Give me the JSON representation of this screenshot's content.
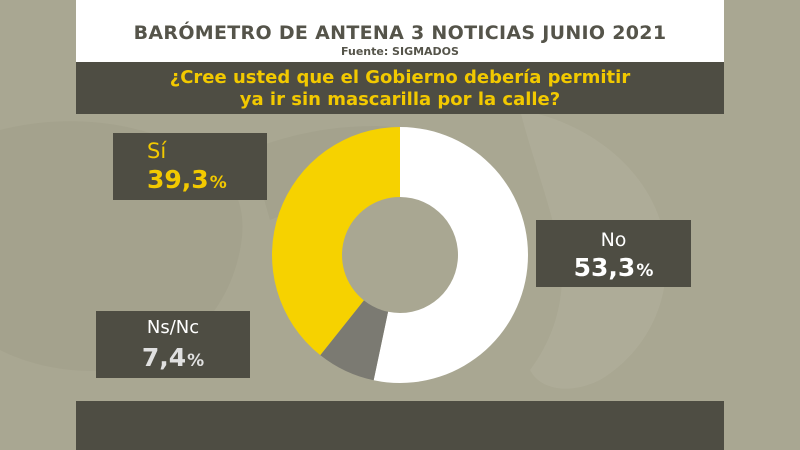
{
  "header": {
    "title": "BARÓMETRO DE ANTENA 3 NOTICIAS JUNIO 2021",
    "source": "Fuente: SIGMADOS"
  },
  "question": {
    "line1": "¿Cree usted que el Gobierno debería permitir",
    "line2": "ya ir sin mascarilla por la calle?"
  },
  "labels": {
    "si": {
      "name": "Sí",
      "value": "39,3",
      "unit": "%"
    },
    "no": {
      "name": "No",
      "value": "53,3",
      "unit": "%"
    },
    "nsnc": {
      "name": "Ns/Nc",
      "value": "7,4",
      "unit": "%"
    }
  },
  "colors": {
    "si": "#f6d200",
    "no": "#ffffff",
    "nsnc": "#7b7a72"
  },
  "chart_data": {
    "type": "pie",
    "title": "¿Cree usted que el Gobierno debería permitir ya ir sin mascarilla por la calle?",
    "categories": [
      "No",
      "Ns/Nc",
      "Sí"
    ],
    "values": [
      53.3,
      7.4,
      39.3
    ],
    "unit": "%",
    "donut": true
  }
}
